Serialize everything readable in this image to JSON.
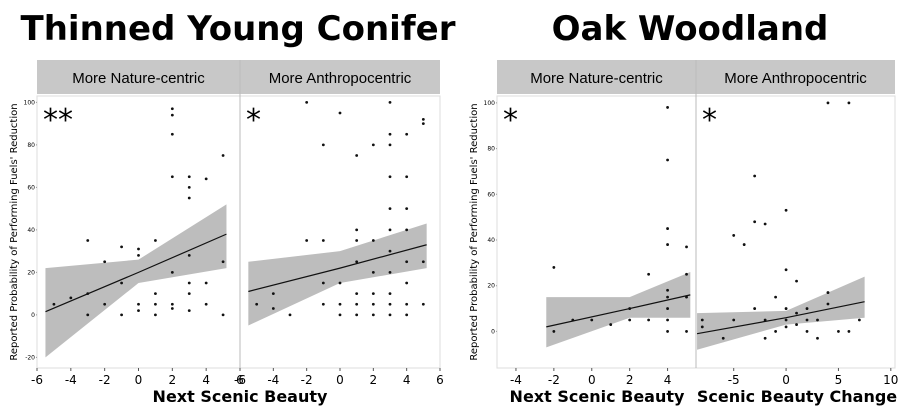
{
  "chart_data": [
    {
      "type": "scatter",
      "title": "Thinned Young Conifer",
      "y_label": "Reported Probability of Performing Fuels' Reduction",
      "x_labels": [
        "Next Scenic Beauty"
      ],
      "ylim": [
        -25,
        103
      ],
      "yticks": [
        -20,
        0,
        20,
        40,
        60,
        80,
        100
      ],
      "panels": [
        {
          "facet": "More Nature-centric",
          "significance": "**",
          "xlim": [
            -6,
            6
          ],
          "xticks": [
            -6,
            -4,
            -2,
            0,
            2,
            4,
            6
          ],
          "x": [
            -5,
            -4,
            -3,
            -3,
            -3,
            -2,
            -2,
            -1,
            -1,
            -1,
            0,
            0,
            0,
            0,
            1,
            1,
            1,
            1,
            2,
            2,
            2,
            2,
            2,
            2,
            2,
            3,
            3,
            3,
            3,
            3,
            3,
            3,
            4,
            4,
            4,
            5,
            5,
            5
          ],
          "y": [
            5,
            8,
            35,
            10,
            0,
            25,
            5,
            32,
            15,
            0,
            31,
            28,
            5,
            2,
            35,
            10,
            5,
            0,
            97,
            94,
            85,
            65,
            20,
            5,
            3,
            65,
            60,
            55,
            28,
            15,
            10,
            2,
            64,
            15,
            5,
            75,
            25,
            0
          ],
          "fit": {
            "x": [
              -5.5,
              0,
              5.2
            ],
            "y": [
              1.5,
              20,
              38
            ],
            "lower": [
              -20,
              15,
              22
            ],
            "upper": [
              22,
              26,
              52
            ]
          }
        },
        {
          "facet": "More Anthropocentric",
          "significance": "*",
          "xlim": [
            -6,
            6
          ],
          "xticks": [
            -6,
            -4,
            -2,
            0,
            2,
            4,
            6
          ],
          "x": [
            -5,
            -4,
            -4,
            -3,
            -2,
            -2,
            -1,
            -1,
            -1,
            -1,
            0,
            0,
            0,
            0,
            1,
            1,
            1,
            1,
            1,
            1,
            1,
            2,
            2,
            2,
            2,
            2,
            2,
            3,
            3,
            3,
            3,
            3,
            3,
            3,
            3,
            3,
            3,
            3,
            4,
            4,
            4,
            4,
            4,
            4,
            4,
            4,
            5,
            5,
            5,
            5
          ],
          "y": [
            5,
            10,
            3,
            0,
            100,
            35,
            80,
            35,
            15,
            5,
            95,
            15,
            5,
            0,
            75,
            40,
            35,
            25,
            10,
            5,
            0,
            80,
            35,
            20,
            10,
            5,
            0,
            100,
            85,
            80,
            65,
            50,
            40,
            30,
            20,
            10,
            5,
            0,
            85,
            65,
            50,
            40,
            25,
            15,
            5,
            0,
            92,
            90,
            25,
            5
          ],
          "fit": {
            "x": [
              -5.5,
              0,
              5.2
            ],
            "y": [
              11,
              22,
              33
            ],
            "lower": [
              -5,
              15,
              22
            ],
            "upper": [
              25,
              30,
              43
            ]
          }
        }
      ]
    },
    {
      "type": "scatter",
      "title": "Oak Woodland",
      "y_label": "Reported Probability of Performing Fuels' Reduction",
      "x_labels": [
        "Next Scenic Beauty",
        "Scenic Beauty Change"
      ],
      "ylim": [
        -16,
        103
      ],
      "yticks": [
        0,
        20,
        40,
        60,
        80,
        100
      ],
      "panels": [
        {
          "facet": "More Nature-centric",
          "significance": "*",
          "xlim": [
            -5,
            5.5
          ],
          "xticks": [
            -4,
            -2,
            0,
            2,
            4
          ],
          "x": [
            -2,
            -2,
            -1,
            0,
            1,
            2,
            2,
            3,
            3,
            4,
            4,
            4,
            4,
            4,
            4,
            4,
            4,
            4,
            5,
            5,
            5,
            5
          ],
          "y": [
            28,
            0,
            5,
            5,
            3,
            10,
            5,
            25,
            5,
            98,
            75,
            45,
            38,
            18,
            15,
            10,
            5,
            0,
            37,
            25,
            15,
            0
          ],
          "fit": {
            "x": [
              -2.4,
              2,
              5.2
            ],
            "y": [
              2,
              10,
              16
            ],
            "lower": [
              -7,
              6,
              6
            ],
            "upper": [
              15,
              15,
              26
            ]
          }
        },
        {
          "facet": "More Anthropocentric",
          "significance": "*",
          "xlim": [
            -8.6,
            10.4
          ],
          "xticks": [
            -5,
            0,
            5,
            10
          ],
          "x": [
            -8,
            -8,
            -5,
            -5,
            -4,
            -3,
            -3,
            -3,
            -2,
            -2,
            -1,
            -1,
            0,
            0,
            0,
            0,
            0,
            1,
            1,
            1,
            2,
            2,
            2,
            3,
            4,
            4,
            4,
            5,
            6,
            6,
            7,
            3,
            -2,
            -6
          ],
          "y": [
            5,
            2,
            42,
            5,
            38,
            68,
            48,
            10,
            47,
            5,
            15,
            0,
            53,
            27,
            10,
            5,
            2,
            22,
            8,
            3,
            10,
            5,
            0,
            5,
            100,
            17,
            12,
            0,
            100,
            0,
            5,
            -3,
            -3,
            -3
          ],
          "fit": {
            "x": [
              -8.5,
              0,
              7.5
            ],
            "y": [
              -1,
              6,
              13
            ],
            "lower": [
              -8,
              3,
              6
            ],
            "upper": [
              8,
              9,
              24
            ]
          }
        }
      ]
    }
  ]
}
